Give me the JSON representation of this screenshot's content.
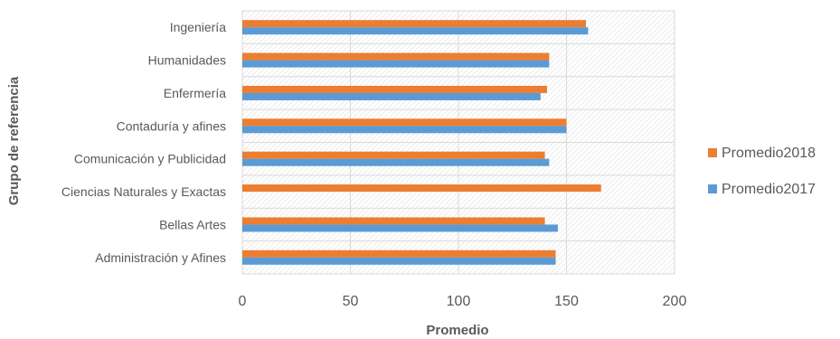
{
  "chart_data": {
    "type": "bar",
    "orientation": "horizontal",
    "categories": [
      "Ingeniería",
      "Humanidades",
      "Enfermería",
      "Contaduría y afines",
      "Comunicación y Publicidad",
      "Ciencias Naturales y Exactas",
      "Bellas Artes",
      "Administración y Afines"
    ],
    "series": [
      {
        "name": "Promedio2018",
        "color": "#ED7D31",
        "values": [
          159,
          142,
          141,
          150,
          140,
          166,
          140,
          145
        ]
      },
      {
        "name": "Promedio2017",
        "color": "#5B9BD5",
        "values": [
          160,
          142,
          138,
          150,
          142,
          null,
          146,
          145
        ]
      }
    ],
    "xlabel": "Promedio",
    "ylabel": "Grupo de referencia",
    "xlim": [
      0,
      200
    ],
    "xticks": [
      "0",
      "50",
      "100",
      "150",
      "200"
    ],
    "grid": true,
    "legend_position": "right"
  }
}
